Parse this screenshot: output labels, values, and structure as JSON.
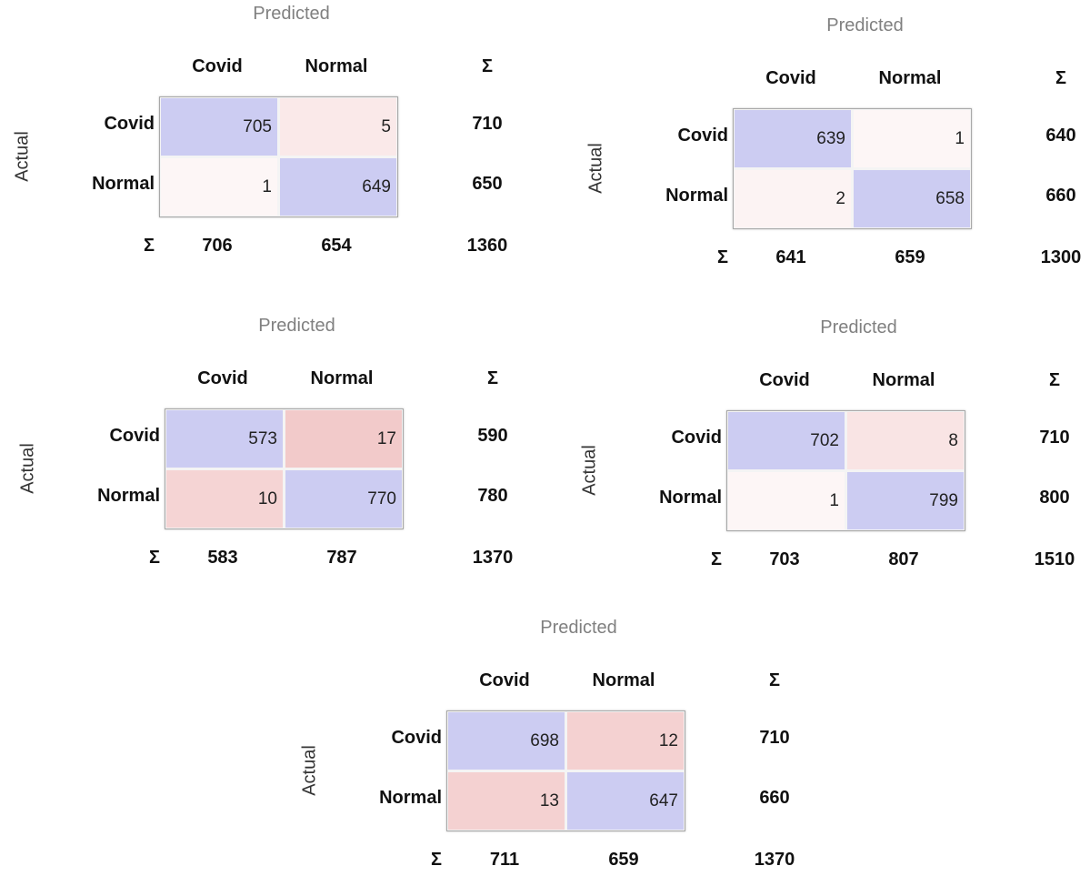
{
  "chart_data": [
    {
      "type": "heatmap",
      "title": "Predicted",
      "xlabel": "Predicted",
      "ylabel": "Actual",
      "columns": [
        "Covid",
        "Normal"
      ],
      "rows": [
        "Covid",
        "Normal"
      ],
      "sum_symbol": "Σ",
      "values": [
        [
          705,
          5
        ],
        [
          1,
          649
        ]
      ],
      "row_totals": [
        710,
        650
      ],
      "col_totals": [
        706,
        654
      ],
      "total": 1360,
      "colors": {
        "correct": "#ccccf2",
        "error": "#f2c8c8",
        "background": "#f4f4f4"
      }
    },
    {
      "type": "heatmap",
      "title": "Predicted",
      "xlabel": "Predicted",
      "ylabel": "Actual",
      "columns": [
        "Covid",
        "Normal"
      ],
      "rows": [
        "Covid",
        "Normal"
      ],
      "sum_symbol": "Σ",
      "values": [
        [
          639,
          1
        ],
        [
          2,
          658
        ]
      ],
      "row_totals": [
        640,
        660
      ],
      "col_totals": [
        641,
        659
      ],
      "total": 1300,
      "colors": {
        "correct": "#ccccf2",
        "error": "#f2c8c8",
        "background": "#f4f4f4"
      }
    },
    {
      "type": "heatmap",
      "title": "Predicted",
      "xlabel": "Predicted",
      "ylabel": "Actual",
      "columns": [
        "Covid",
        "Normal"
      ],
      "rows": [
        "Covid",
        "Normal"
      ],
      "sum_symbol": "Σ",
      "values": [
        [
          573,
          17
        ],
        [
          10,
          770
        ]
      ],
      "row_totals": [
        590,
        780
      ],
      "col_totals": [
        583,
        787
      ],
      "total": 1370,
      "colors": {
        "correct": "#ccccf2",
        "error": "#f2c8c8",
        "background": "#f4f4f4"
      }
    },
    {
      "type": "heatmap",
      "title": "Predicted",
      "xlabel": "Predicted",
      "ylabel": "Actual",
      "columns": [
        "Covid",
        "Normal"
      ],
      "rows": [
        "Covid",
        "Normal"
      ],
      "sum_symbol": "Σ",
      "values": [
        [
          702,
          8
        ],
        [
          1,
          799
        ]
      ],
      "row_totals": [
        710,
        800
      ],
      "col_totals": [
        703,
        807
      ],
      "total": 1510,
      "colors": {
        "correct": "#ccccf2",
        "error": "#f2c8c8",
        "background": "#f4f4f4"
      }
    },
    {
      "type": "heatmap",
      "title": "Predicted",
      "xlabel": "Predicted",
      "ylabel": "Actual",
      "columns": [
        "Covid",
        "Normal"
      ],
      "rows": [
        "Covid",
        "Normal"
      ],
      "sum_symbol": "Σ",
      "values": [
        [
          698,
          12
        ],
        [
          13,
          647
        ]
      ],
      "row_totals": [
        710,
        660
      ],
      "col_totals": [
        711,
        659
      ],
      "total": 1370,
      "colors": {
        "correct": "#ccccf2",
        "error": "#f2c8c8",
        "background": "#f4f4f4"
      }
    }
  ]
}
